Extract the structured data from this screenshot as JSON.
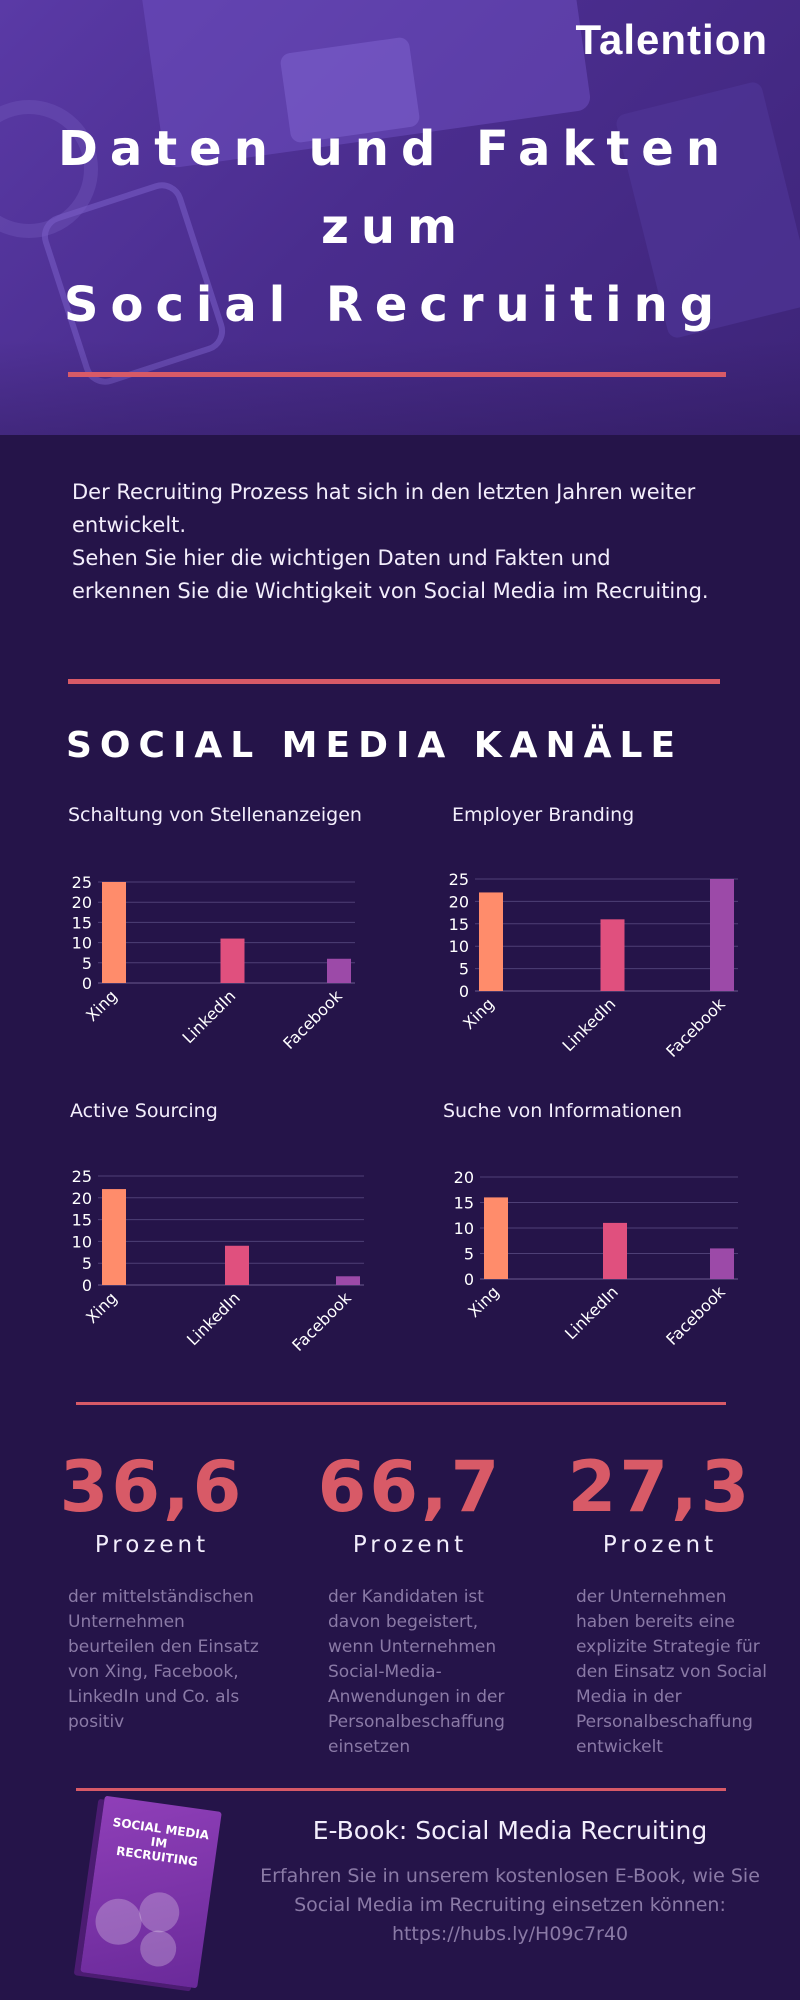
{
  "logo": "Talention",
  "hero": {
    "title_lines": [
      "Daten und Fakten",
      "zum",
      "Social Recruiting"
    ]
  },
  "intro": {
    "paragraph1": "Der Recruiting Prozess hat sich in den letzten Jahren weiter entwickelt.",
    "paragraph2": "Sehen Sie hier die wichtigen Daten und Fakten und erkennen Sie die Wichtigkeit von Social Media im Recruiting."
  },
  "section_title": "SOCIAL MEDIA KANÄLE",
  "colors": {
    "xing": "#ff8c6b",
    "linkedin": "#e0507e",
    "facebook": "#9c4aa8",
    "accent": "#d85a67"
  },
  "chart_data": [
    {
      "type": "bar",
      "title": "Schaltung von Stellenanzeigen",
      "categories": [
        "Xing",
        "LinkedIn",
        "Facebook"
      ],
      "values": [
        25,
        11,
        6
      ],
      "ylim": [
        0,
        25
      ],
      "yticks": [
        0,
        5,
        10,
        15,
        20,
        25
      ],
      "grid": true
    },
    {
      "type": "bar",
      "title": "Employer Branding",
      "categories": [
        "Xing",
        "LinkedIn",
        "Facebook"
      ],
      "values": [
        22,
        16,
        25
      ],
      "ylim": [
        0,
        25
      ],
      "yticks": [
        0,
        5,
        10,
        15,
        20,
        25
      ],
      "grid": true
    },
    {
      "type": "bar",
      "title": "Active Sourcing",
      "categories": [
        "Xing",
        "LinkedIn",
        "Facebook"
      ],
      "values": [
        22,
        9,
        2
      ],
      "ylim": [
        0,
        25
      ],
      "yticks": [
        0,
        5,
        10,
        15,
        20,
        25
      ],
      "grid": true
    },
    {
      "type": "bar",
      "title": "Suche von Informationen",
      "categories": [
        "Xing",
        "LinkedIn",
        "Facebook"
      ],
      "values": [
        16,
        11,
        6
      ],
      "ylim": [
        0,
        20
      ],
      "yticks": [
        0,
        5,
        10,
        15,
        20
      ],
      "grid": true
    }
  ],
  "stats": [
    {
      "value": "36,6",
      "unit": "Prozent",
      "text": "der mittelständischen Unternehmen beurteilen den Einsatz von Xing, Facebook, LinkedIn und Co. als positiv"
    },
    {
      "value": "66,7",
      "unit": "Prozent",
      "text": "der Kandidaten ist davon begeistert, wenn Unternehmen Social-Media-Anwendungen in der Personalbeschaffung einsetzen"
    },
    {
      "value": "27,3",
      "unit": "Prozent",
      "text": "der Unternehmen haben bereits eine explizite Strategie für den Einsatz von Social Media in der Personalbeschaffung entwickelt"
    }
  ],
  "ebook": {
    "cover_title": "SOCIAL MEDIA IM RECRUITING",
    "title": "E-Book: Social Media Recruiting",
    "text": "Erfahren Sie in unserem kostenlosen E-Book, wie Sie Social Media im Recruiting einsetzen können: https://hubs.ly/H09c7r40"
  }
}
